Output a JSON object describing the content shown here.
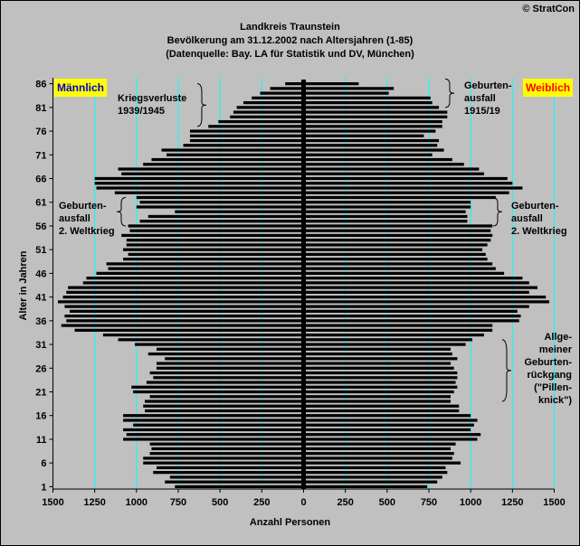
{
  "copyright": "© StratCon",
  "title_lines": [
    "Landkreis Traunstein",
    "Bevölkerung am 31.12.2002 nach Altersjahren (1-85)",
    "(Datenquelle: Bay. LA für Statistik und DV, München)"
  ],
  "left_label": "Männlich",
  "right_label": "Weiblich",
  "annotations": {
    "war_losses": [
      "Kriegsverluste",
      "1939/1945"
    ],
    "birth_gap_1915": [
      "Geburten-",
      "ausfall",
      "1915/19"
    ],
    "birth_gap_ww2_left": [
      "Geburten-",
      "ausfall",
      "2. Weltkrieg"
    ],
    "birth_gap_ww2_right": [
      "Geburten-",
      "ausfall",
      "2. Weltkrieg"
    ],
    "general_decline": [
      "Allge-",
      "meiner",
      "Geburten-",
      "rückgang",
      "(\"Pillen-",
      "knick\")"
    ]
  },
  "colors": {
    "bar": "#000000",
    "grid": "#00ffff",
    "highlight": "#ffff00",
    "background": "#c0c0c0"
  },
  "chart_data": {
    "type": "bar",
    "orientation": "horizontal",
    "title": "Landkreis Traunstein",
    "xlabel": "Anzahl Personen",
    "ylabel": "Alter in Jahren",
    "xlim": [
      -1500,
      1500
    ],
    "x_ticks": [
      -1500,
      -1250,
      -1000,
      -750,
      -500,
      -250,
      0,
      250,
      500,
      750,
      1000,
      1250,
      1500
    ],
    "x_tick_labels": [
      "1500",
      "1250",
      "1000",
      "750",
      "500",
      "250",
      "0",
      "250",
      "500",
      "750",
      "1000",
      "1250",
      "1500"
    ],
    "y_ticks": [
      1,
      6,
      11,
      16,
      21,
      26,
      31,
      36,
      41,
      46,
      51,
      56,
      61,
      66,
      71,
      76,
      81,
      86
    ],
    "ages": [
      1,
      2,
      3,
      4,
      5,
      6,
      7,
      8,
      9,
      10,
      11,
      12,
      13,
      14,
      15,
      16,
      17,
      18,
      19,
      20,
      21,
      22,
      23,
      24,
      25,
      26,
      27,
      28,
      29,
      30,
      31,
      32,
      33,
      34,
      35,
      36,
      37,
      38,
      39,
      40,
      41,
      42,
      43,
      44,
      45,
      46,
      47,
      48,
      49,
      50,
      51,
      52,
      53,
      54,
      55,
      56,
      57,
      58,
      59,
      60,
      61,
      62,
      63,
      64,
      65,
      66,
      67,
      68,
      69,
      70,
      71,
      72,
      73,
      74,
      75,
      76,
      77,
      78,
      79,
      80,
      81,
      82,
      83,
      84,
      85,
      86
    ],
    "series": [
      {
        "name": "Männlich",
        "values": [
          770,
          830,
          800,
          900,
          880,
          960,
          960,
          920,
          910,
          920,
          1080,
          1060,
          1080,
          1020,
          1080,
          1080,
          950,
          960,
          950,
          920,
          1020,
          1030,
          940,
          900,
          920,
          880,
          880,
          830,
          930,
          880,
          1010,
          1110,
          1200,
          1370,
          1450,
          1420,
          1430,
          1400,
          1430,
          1470,
          1440,
          1420,
          1410,
          1320,
          1300,
          1240,
          1170,
          1180,
          1080,
          1050,
          1080,
          1060,
          1060,
          1090,
          1040,
          1050,
          980,
          930,
          770,
          1000,
          980,
          1000,
          1130,
          1240,
          1250,
          1250,
          1090,
          1110,
          960,
          910,
          820,
          850,
          720,
          680,
          680,
          680,
          570,
          510,
          440,
          420,
          400,
          360,
          310,
          260,
          200,
          110
        ]
      },
      {
        "name": "Weiblich",
        "values": [
          740,
          800,
          830,
          860,
          850,
          940,
          890,
          900,
          880,
          910,
          1040,
          1060,
          1000,
          1020,
          1040,
          1000,
          930,
          930,
          880,
          880,
          900,
          920,
          910,
          920,
          920,
          900,
          880,
          920,
          890,
          880,
          970,
          1010,
          1080,
          1130,
          1130,
          1290,
          1300,
          1280,
          1350,
          1470,
          1450,
          1350,
          1400,
          1350,
          1310,
          1200,
          1150,
          1130,
          1100,
          1090,
          1070,
          1100,
          1120,
          1130,
          1120,
          1130,
          980,
          980,
          970,
          1000,
          1000,
          1150,
          1230,
          1310,
          1250,
          1220,
          1080,
          1050,
          960,
          890,
          770,
          840,
          800,
          810,
          720,
          790,
          830,
          830,
          860,
          860,
          810,
          770,
          760,
          510,
          540,
          330
        ]
      }
    ]
  }
}
